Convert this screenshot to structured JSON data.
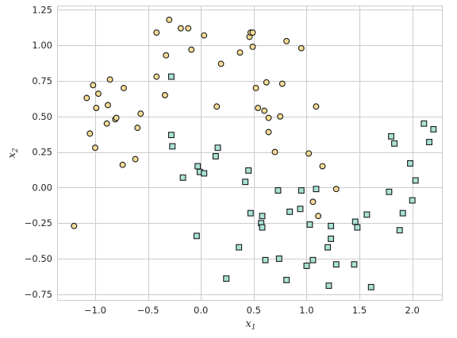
{
  "chart_data": {
    "type": "scatter",
    "title": "",
    "xlabel": "x",
    "xlabel_sub": "1",
    "ylabel": "x",
    "ylabel_sub": "2",
    "xlim": [
      -1.36,
      2.28
    ],
    "ylim": [
      -0.79,
      1.28
    ],
    "grid": true,
    "xticks": [
      -1.0,
      -0.5,
      0.0,
      0.5,
      1.0,
      1.5,
      2.0
    ],
    "xtick_labels": [
      "−1.0",
      "−0.5",
      "0.0",
      "0.5",
      "1.0",
      "1.5",
      "2.0"
    ],
    "yticks": [
      -0.75,
      -0.5,
      -0.25,
      0.0,
      0.25,
      0.5,
      0.75,
      1.0,
      1.25
    ],
    "ytick_labels": [
      "−0.75",
      "−0.50",
      "−0.25",
      "0.00",
      "0.25",
      "0.50",
      "0.75",
      "1.00",
      "1.25"
    ],
    "series": [
      {
        "marker": "circle",
        "fill": "#f6dc96",
        "edge": "#1a1a1a",
        "points": [
          [
            -1.2,
            -0.27
          ],
          [
            -1.08,
            0.63
          ],
          [
            -1.05,
            0.38
          ],
          [
            -1.02,
            0.72
          ],
          [
            -1.0,
            0.28
          ],
          [
            -0.99,
            0.56
          ],
          [
            -0.97,
            0.66
          ],
          [
            -0.89,
            0.45
          ],
          [
            -0.88,
            0.58
          ],
          [
            -0.86,
            0.76
          ],
          [
            -0.81,
            0.48
          ],
          [
            -0.8,
            0.49
          ],
          [
            -0.74,
            0.16
          ],
          [
            -0.73,
            0.7
          ],
          [
            -0.62,
            0.2
          ],
          [
            -0.6,
            0.42
          ],
          [
            -0.57,
            0.52
          ],
          [
            -0.42,
            0.78
          ],
          [
            -0.42,
            1.09
          ],
          [
            -0.34,
            0.65
          ],
          [
            -0.33,
            0.93
          ],
          [
            -0.3,
            1.18
          ],
          [
            -0.19,
            1.12
          ],
          [
            -0.12,
            1.12
          ],
          [
            -0.09,
            0.97
          ],
          [
            0.03,
            1.07
          ],
          [
            0.15,
            0.57
          ],
          [
            0.19,
            0.87
          ],
          [
            0.37,
            0.95
          ],
          [
            0.46,
            1.06
          ],
          [
            0.47,
            1.09
          ],
          [
            0.49,
            0.99
          ],
          [
            0.49,
            1.09
          ],
          [
            0.52,
            0.7
          ],
          [
            0.54,
            0.56
          ],
          [
            0.6,
            0.54
          ],
          [
            0.62,
            0.74
          ],
          [
            0.64,
            0.49
          ],
          [
            0.64,
            0.39
          ],
          [
            0.7,
            0.25
          ],
          [
            0.75,
            0.5
          ],
          [
            0.77,
            0.73
          ],
          [
            0.81,
            1.03
          ],
          [
            0.95,
            0.98
          ],
          [
            1.02,
            0.24
          ],
          [
            1.06,
            -0.1
          ],
          [
            1.09,
            0.57
          ],
          [
            1.11,
            -0.2
          ],
          [
            1.15,
            0.15
          ],
          [
            1.28,
            -0.01
          ]
        ]
      },
      {
        "marker": "square",
        "fill": "#a9e3d6",
        "edge": "#1a1a1a",
        "points": [
          [
            -0.28,
            0.78
          ],
          [
            -0.28,
            0.37
          ],
          [
            -0.27,
            0.29
          ],
          [
            -0.17,
            0.07
          ],
          [
            -0.04,
            -0.34
          ],
          [
            -0.03,
            0.15
          ],
          [
            -0.01,
            0.11
          ],
          [
            0.03,
            0.1
          ],
          [
            0.14,
            0.22
          ],
          [
            0.16,
            0.28
          ],
          [
            0.24,
            -0.64
          ],
          [
            0.36,
            -0.42
          ],
          [
            0.42,
            0.04
          ],
          [
            0.45,
            0.12
          ],
          [
            0.47,
            -0.18
          ],
          [
            0.57,
            -0.25
          ],
          [
            0.58,
            -0.2
          ],
          [
            0.58,
            -0.28
          ],
          [
            0.61,
            -0.51
          ],
          [
            0.73,
            -0.02
          ],
          [
            0.74,
            -0.5
          ],
          [
            0.81,
            -0.65
          ],
          [
            0.84,
            -0.17
          ],
          [
            0.94,
            -0.15
          ],
          [
            0.95,
            -0.02
          ],
          [
            1.0,
            -0.55
          ],
          [
            1.03,
            -0.26
          ],
          [
            1.06,
            -0.51
          ],
          [
            1.09,
            -0.01
          ],
          [
            1.2,
            -0.42
          ],
          [
            1.21,
            -0.69
          ],
          [
            1.23,
            -0.36
          ],
          [
            1.23,
            -0.27
          ],
          [
            1.28,
            -0.54
          ],
          [
            1.45,
            -0.54
          ],
          [
            1.46,
            -0.24
          ],
          [
            1.48,
            -0.28
          ],
          [
            1.57,
            -0.19
          ],
          [
            1.61,
            -0.7
          ],
          [
            1.78,
            -0.03
          ],
          [
            1.8,
            0.36
          ],
          [
            1.83,
            0.31
          ],
          [
            1.88,
            -0.3
          ],
          [
            1.91,
            -0.18
          ],
          [
            1.98,
            0.17
          ],
          [
            2.0,
            -0.09
          ],
          [
            2.03,
            0.05
          ],
          [
            2.11,
            0.45
          ],
          [
            2.16,
            0.32
          ],
          [
            2.2,
            0.41
          ]
        ]
      }
    ]
  }
}
